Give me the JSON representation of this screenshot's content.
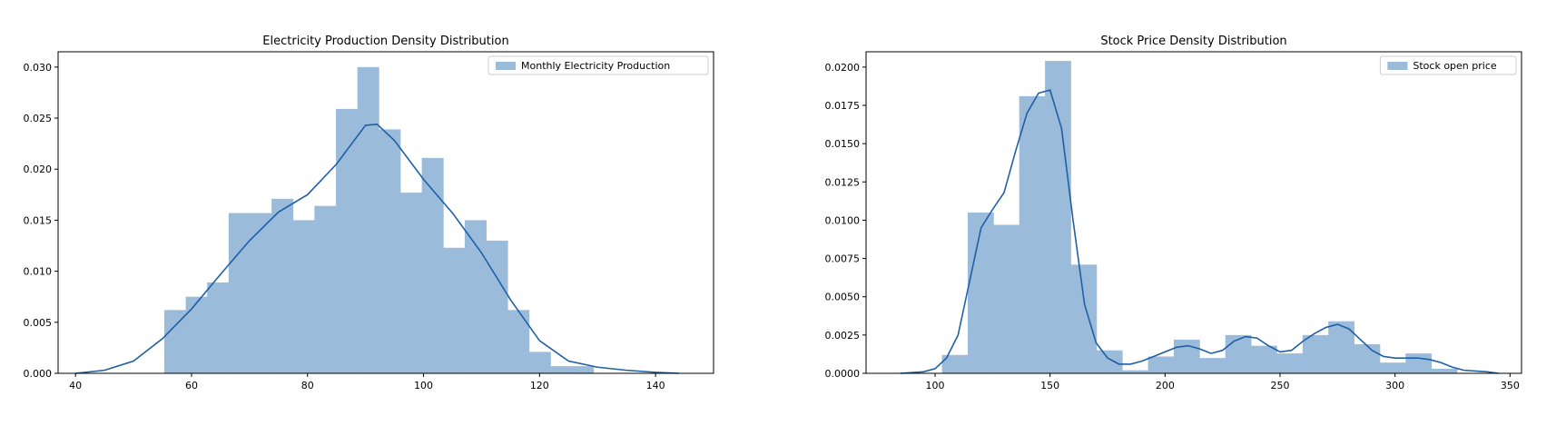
{
  "chart_data": [
    {
      "type": "bar",
      "title": "Electricity Production Density Distribution",
      "legend": {
        "label": "Monthly Electricity Production",
        "position": "top-right"
      },
      "bar_color": "#9bbbda",
      "kde_color": "#1f5fa6",
      "xlim": [
        37,
        150
      ],
      "ylim": [
        0,
        0.0315
      ],
      "xticks": [
        40,
        60,
        80,
        100,
        120,
        140
      ],
      "yticks": [
        0.0,
        0.005,
        0.01,
        0.015,
        0.02,
        0.025,
        0.03
      ],
      "ytick_labels": [
        "0.000",
        "0.005",
        "0.010",
        "0.015",
        "0.020",
        "0.025",
        "0.030"
      ],
      "bin_edges": [
        55.3,
        59.0,
        62.7,
        66.4,
        70.1,
        73.8,
        77.5,
        81.2,
        84.9,
        88.6,
        92.3,
        96.0,
        99.7,
        103.4,
        107.1,
        110.8,
        114.5,
        118.2,
        121.9,
        125.6,
        129.3
      ],
      "values": [
        0.0062,
        0.0075,
        0.0089,
        0.0157,
        0.0157,
        0.0171,
        0.015,
        0.0164,
        0.0259,
        0.03,
        0.0239,
        0.0177,
        0.0211,
        0.0123,
        0.015,
        0.013,
        0.0062,
        0.0021,
        0.0007,
        0.0007
      ],
      "kde": {
        "x": [
          40,
          45,
          50,
          55,
          60,
          65,
          70,
          75,
          80,
          85,
          90,
          92,
          95,
          100,
          105,
          110,
          115,
          120,
          125,
          130,
          135,
          140,
          144
        ],
        "y": [
          0.0,
          0.0003,
          0.0012,
          0.0034,
          0.0063,
          0.0097,
          0.013,
          0.0158,
          0.0175,
          0.0205,
          0.0243,
          0.0244,
          0.0228,
          0.019,
          0.0157,
          0.0118,
          0.0072,
          0.0032,
          0.0012,
          0.0006,
          0.0003,
          0.0001,
          0.0
        ]
      }
    },
    {
      "type": "bar",
      "title": "Stock Price Density Distribution",
      "legend": {
        "label": "Stock open price",
        "position": "top-right"
      },
      "bar_color": "#9bbbda",
      "kde_color": "#1f5fa6",
      "xlim": [
        70,
        355
      ],
      "ylim": [
        0,
        0.021
      ],
      "xticks": [
        100,
        150,
        200,
        250,
        300,
        350
      ],
      "yticks": [
        0.0,
        0.0025,
        0.005,
        0.0075,
        0.01,
        0.0125,
        0.015,
        0.0175,
        0.02
      ],
      "ytick_labels": [
        "0.0000",
        "0.0025",
        "0.0050",
        "0.0075",
        "0.0100",
        "0.0125",
        "0.0150",
        "0.0175",
        "0.0200"
      ],
      "bin_edges": [
        103,
        114.2,
        125.4,
        136.6,
        147.8,
        159.0,
        170.2,
        181.4,
        192.6,
        203.8,
        215.0,
        226.2,
        237.4,
        248.6,
        259.8,
        271.0,
        282.2,
        293.4,
        304.6,
        315.8,
        327.0
      ],
      "values": [
        0.0012,
        0.0105,
        0.0097,
        0.0181,
        0.0204,
        0.0071,
        0.0015,
        0.0002,
        0.0011,
        0.0022,
        0.001,
        0.0025,
        0.0018,
        0.0013,
        0.0025,
        0.0034,
        0.0019,
        0.0007,
        0.0013,
        0.0003
      ],
      "kde": {
        "x": [
          85,
          95,
          100,
          105,
          110,
          115,
          120,
          125,
          130,
          135,
          140,
          145,
          150,
          155,
          160,
          165,
          170,
          175,
          180,
          185,
          190,
          195,
          200,
          205,
          210,
          215,
          220,
          225,
          230,
          235,
          240,
          245,
          250,
          255,
          260,
          265,
          270,
          275,
          280,
          285,
          290,
          295,
          300,
          305,
          310,
          315,
          320,
          325,
          330,
          340,
          345
        ],
        "y": [
          0.0,
          0.0001,
          0.0003,
          0.001,
          0.0025,
          0.006,
          0.0095,
          0.0107,
          0.0118,
          0.0145,
          0.017,
          0.0183,
          0.0185,
          0.016,
          0.01,
          0.0045,
          0.002,
          0.001,
          0.0006,
          0.0006,
          0.0008,
          0.0011,
          0.0014,
          0.0017,
          0.0018,
          0.0016,
          0.0013,
          0.0015,
          0.0021,
          0.0024,
          0.0023,
          0.0018,
          0.0014,
          0.0015,
          0.0021,
          0.0026,
          0.003,
          0.0032,
          0.0029,
          0.0022,
          0.0015,
          0.0011,
          0.001,
          0.001,
          0.001,
          0.0009,
          0.0007,
          0.0004,
          0.0002,
          0.0001,
          0.0
        ]
      }
    }
  ]
}
